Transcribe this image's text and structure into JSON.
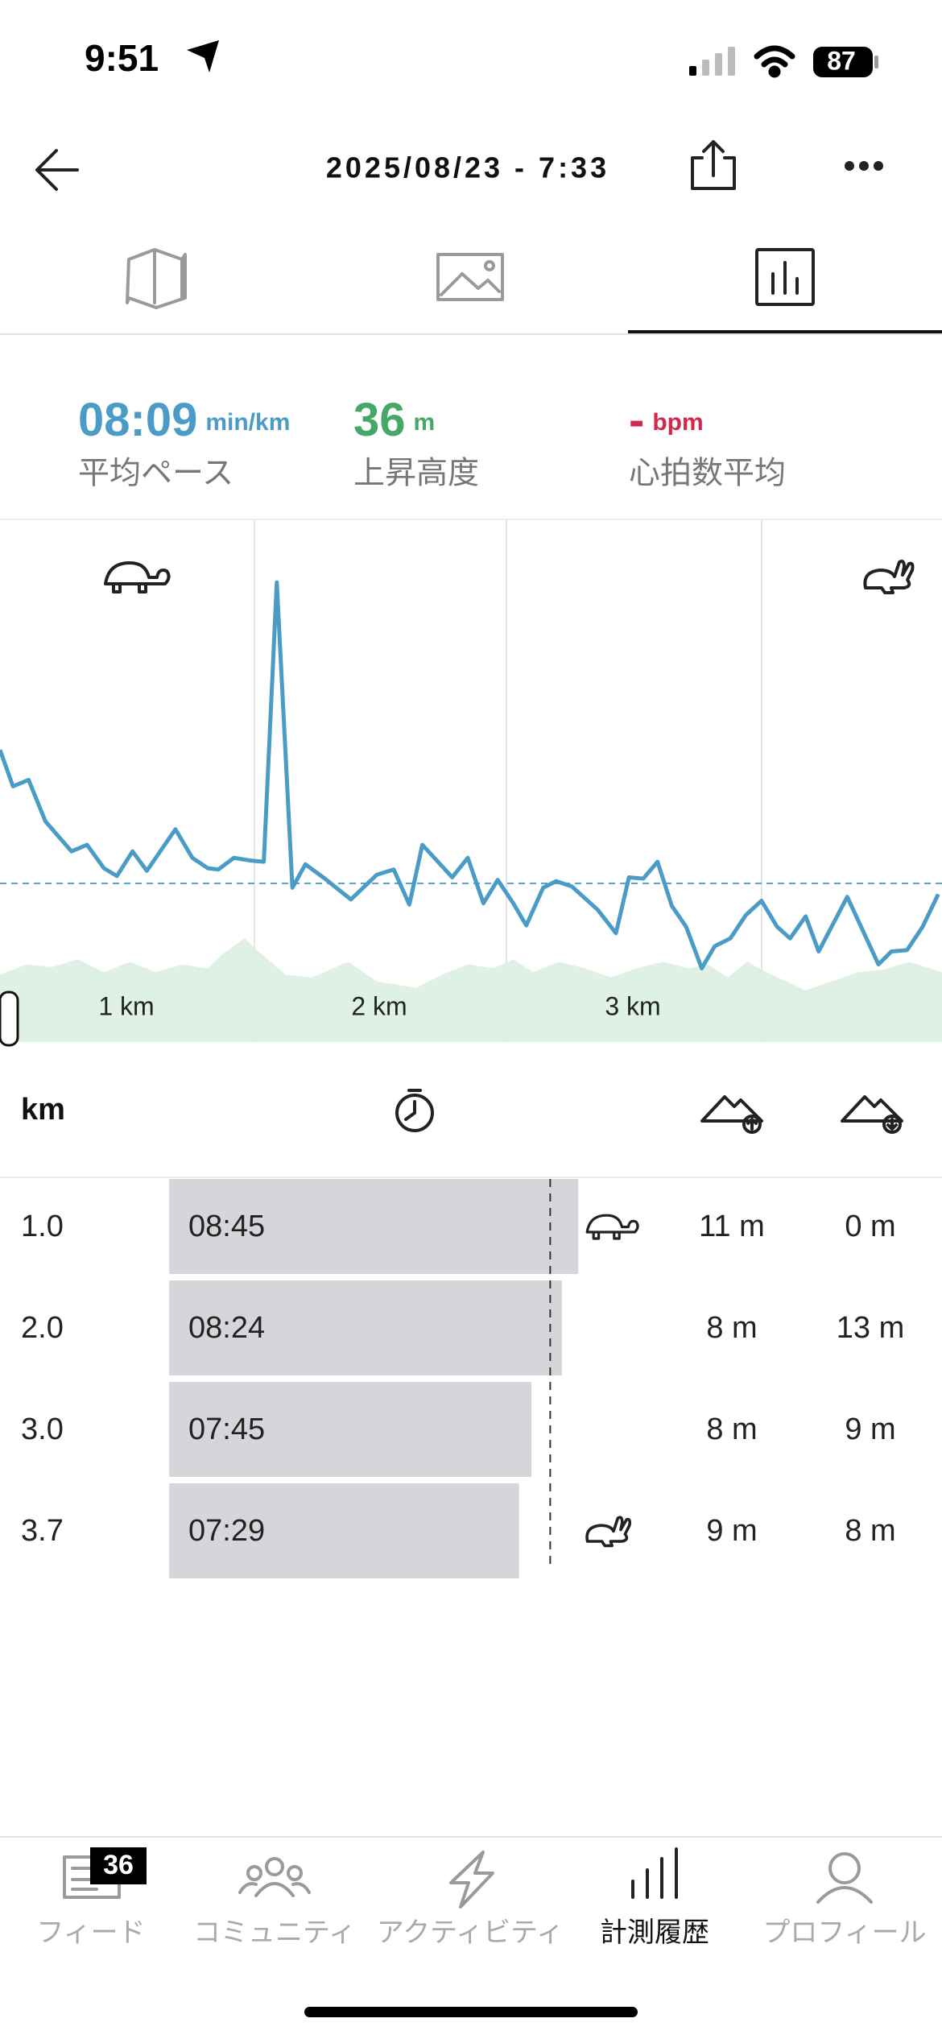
{
  "status_bar": {
    "time": "9:51",
    "battery": "87"
  },
  "header": {
    "title": "2025/08/23 - 7:33"
  },
  "stats": [
    {
      "value": "08:09",
      "unit": "min/km",
      "label": "平均ペース"
    },
    {
      "value": "36",
      "unit": "m",
      "label": "上昇高度"
    },
    {
      "value": "-",
      "unit": "bpm",
      "label": "心拍数平均"
    }
  ],
  "chart": {
    "x_labels": [
      "1 km",
      "2 km",
      "3 km"
    ]
  },
  "splits": {
    "header": "km",
    "rows": [
      {
        "km": "1.0",
        "pace": "08:45",
        "up": "11 m",
        "down": "0 m"
      },
      {
        "km": "2.0",
        "pace": "08:24",
        "up": "8 m",
        "down": "13 m"
      },
      {
        "km": "3.0",
        "pace": "07:45",
        "up": "8 m",
        "down": "9 m"
      },
      {
        "km": "3.7",
        "pace": "07:29",
        "up": "9 m",
        "down": "8 m"
      }
    ]
  },
  "tab_bar": {
    "badge": "36",
    "items": [
      "フィード",
      "コミュニティ",
      "アクティビティ",
      "計測履歴",
      "プロフィール"
    ]
  }
}
